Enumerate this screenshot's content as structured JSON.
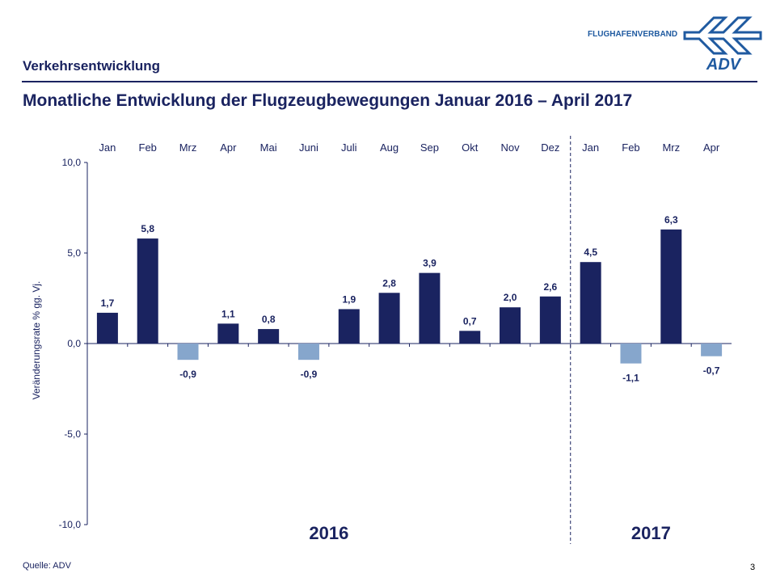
{
  "header": {
    "section": "Verkehrsentwicklung",
    "title": "Monatliche Entwicklung der Flugzeugbewegungen Januar 2016 – April 2017",
    "brand_text": "FLUGHAFENVERBAND",
    "logo_text": "ADV"
  },
  "footer": {
    "source": "Quelle: ADV",
    "page": "3"
  },
  "colors": {
    "positive": "#1a2360",
    "negative": "#86a6cc",
    "text": "#1a2360"
  },
  "chart_data": {
    "type": "bar",
    "categories": [
      "Jan",
      "Feb",
      "Mrz",
      "Apr",
      "Mai",
      "Juni",
      "Juli",
      "Aug",
      "Sep",
      "Okt",
      "Nov",
      "Dez",
      "Jan",
      "Feb",
      "Mrz",
      "Apr"
    ],
    "values": [
      1.7,
      5.8,
      -0.9,
      1.1,
      0.8,
      -0.9,
      1.9,
      2.8,
      3.9,
      0.7,
      2.0,
      2.6,
      4.5,
      -1.1,
      6.3,
      -0.7
    ],
    "data_labels": [
      "1,7",
      "5,8",
      "-0,9",
      "1,1",
      "0,8",
      "-0,9",
      "1,9",
      "2,8",
      "3,9",
      "0,7",
      "2,0",
      "2,6",
      "4,5",
      "-1,1",
      "6,3",
      "-0,7"
    ],
    "year_groups": [
      {
        "label": "2016",
        "months": 12
      },
      {
        "label": "2017",
        "months": 4
      }
    ],
    "ylabel": "Veränderungsrate % gg. Vj.",
    "ylim": [
      -10,
      10
    ],
    "yticks": [
      "10,0",
      "5,0",
      "0,0",
      "-5,0",
      "-10,0"
    ],
    "ytick_values": [
      10,
      5,
      0,
      -5,
      -10
    ],
    "grid": false,
    "legend": "none"
  }
}
